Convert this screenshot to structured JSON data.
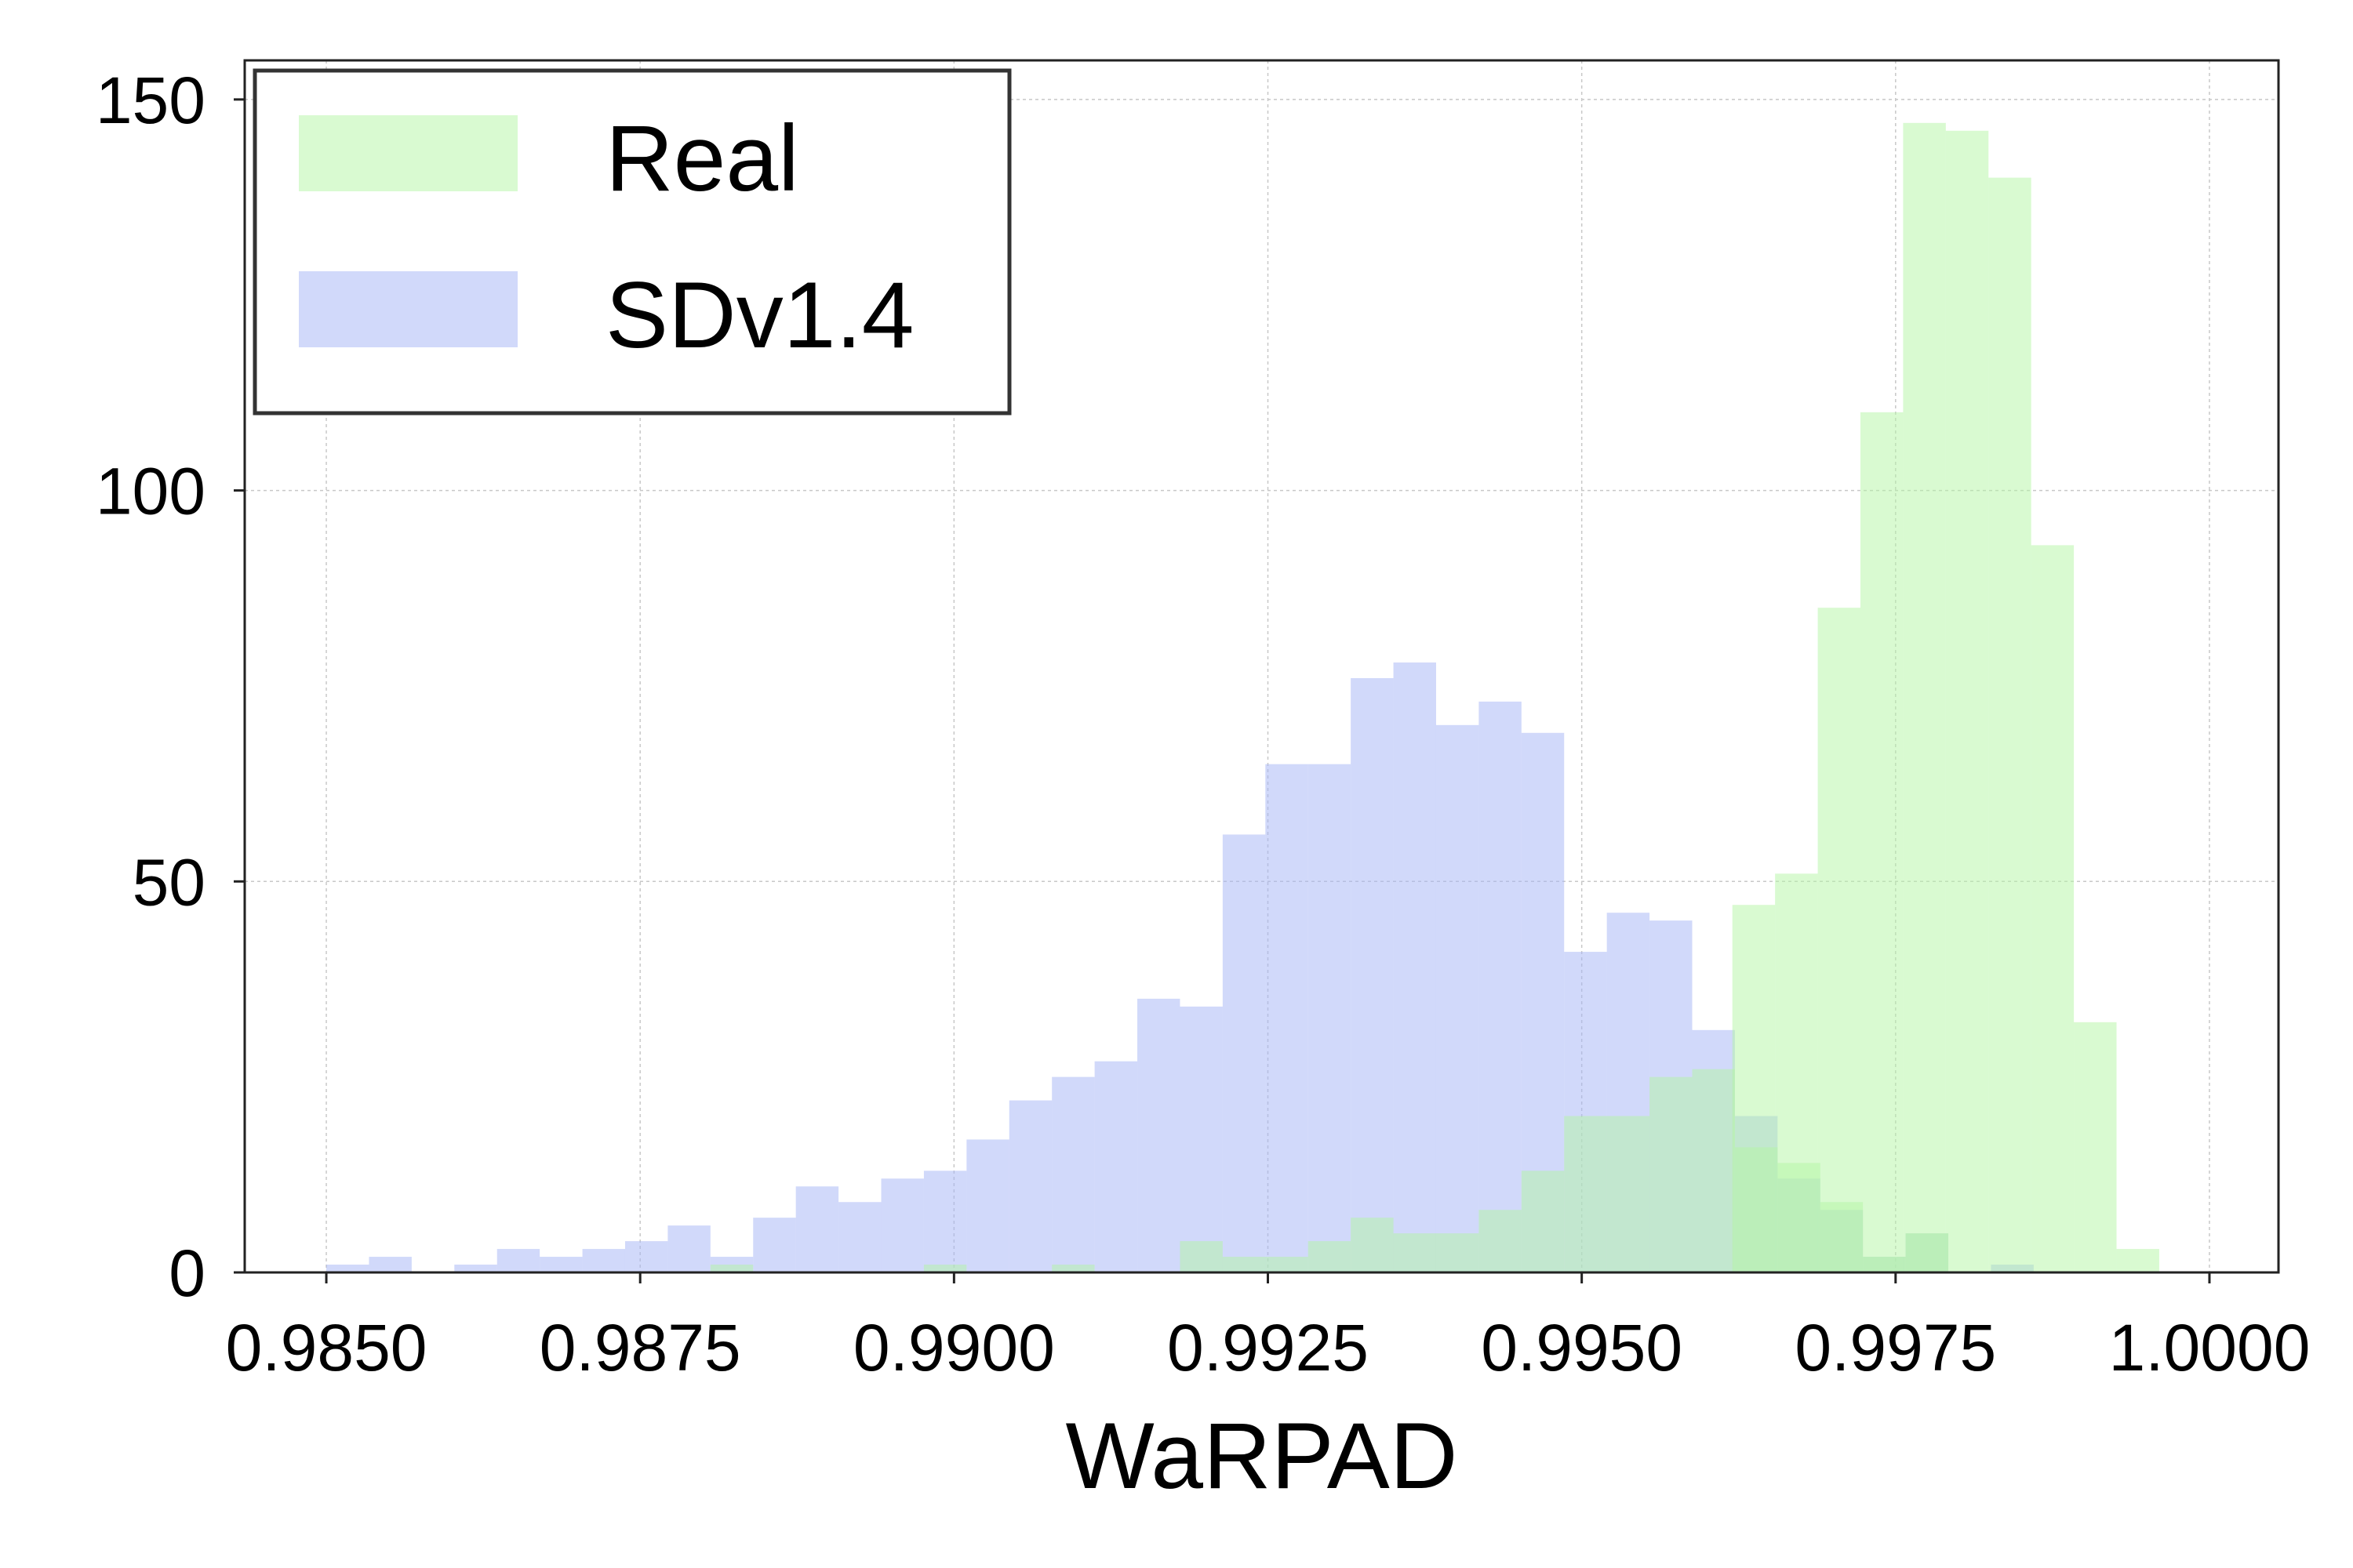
{
  "chart_data": {
    "type": "bar",
    "subtype": "overlapping-histogram",
    "title": "",
    "xlabel": "WaRPAD",
    "ylabel": "",
    "xlim": [
      0.98435,
      1.00055
    ],
    "ylim": [
      0,
      155
    ],
    "x_ticks": [
      {
        "value": 0.985,
        "label": "0.9850"
      },
      {
        "value": 0.9875,
        "label": "0.9875"
      },
      {
        "value": 0.99,
        "label": "0.9900"
      },
      {
        "value": 0.9925,
        "label": "0.9925"
      },
      {
        "value": 0.995,
        "label": "0.9950"
      },
      {
        "value": 0.9975,
        "label": "0.9975"
      },
      {
        "value": 1.0,
        "label": "1.0000"
      }
    ],
    "y_ticks": [
      {
        "value": 0,
        "label": "0"
      },
      {
        "value": 50,
        "label": "50"
      },
      {
        "value": 100,
        "label": "100"
      },
      {
        "value": 150,
        "label": "150"
      }
    ],
    "grid": true,
    "legend_position": "top-left",
    "series": [
      {
        "name": "SDv1.4",
        "color": "#a3b4f5",
        "opacity": 0.5,
        "bin_start": 0.985,
        "bin_width": 0.00034,
        "values": [
          1,
          2,
          0,
          1,
          3,
          2,
          3,
          4,
          6,
          2,
          7,
          11,
          9,
          12,
          13,
          17,
          22,
          25,
          27,
          35,
          34,
          56,
          65,
          65,
          76,
          78,
          70,
          73,
          69,
          41,
          46,
          45,
          31,
          20,
          12,
          8,
          2,
          5,
          0,
          1
        ]
      },
      {
        "name": "Real",
        "color": "#b3f5a3",
        "opacity": 0.5,
        "bin_start": 0.985,
        "bin_width": 0.00034,
        "values": [
          0,
          0,
          0,
          0,
          0,
          0,
          0,
          0,
          0,
          1,
          0,
          0,
          0,
          0,
          1,
          0,
          0,
          1,
          0,
          0,
          4,
          2,
          2,
          4,
          7,
          5,
          5,
          8,
          13,
          20,
          20,
          25,
          26,
          16,
          14,
          9,
          2,
          5,
          0,
          0
        ]
      },
      {
        "name": "Real",
        "color": "#b3f5a3",
        "opacity": 0.5,
        "bin_start": 0.9962,
        "bin_width": 0.00034,
        "values": [
          47,
          51,
          85,
          110,
          147,
          146,
          140,
          93,
          32,
          3
        ]
      }
    ]
  }
}
